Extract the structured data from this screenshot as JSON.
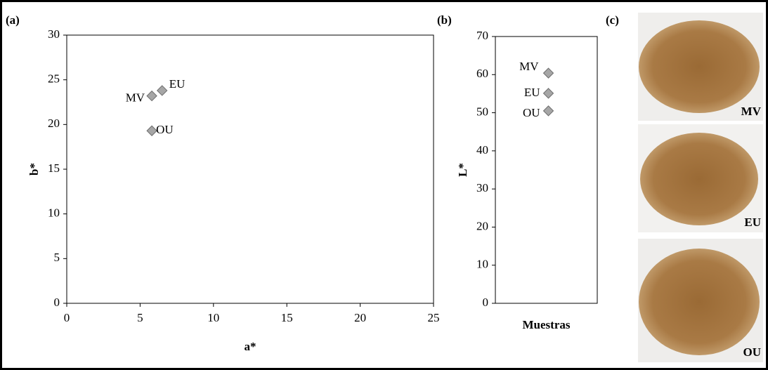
{
  "chart_data": [
    {
      "type": "scatter",
      "panel_label": "(a)",
      "xlabel": "a*",
      "ylabel": "b*",
      "xlim": [
        0,
        25
      ],
      "xticks": [
        0,
        5,
        10,
        15,
        20,
        25
      ],
      "ylim": [
        0,
        30
      ],
      "yticks": [
        0,
        5,
        10,
        15,
        20,
        25,
        30
      ],
      "series": [
        {
          "name": "MV",
          "color": "#a6a6a6",
          "x": [
            5.8
          ],
          "values": [
            23.2
          ]
        },
        {
          "name": "EU",
          "color": "#a6a6a6",
          "x": [
            6.5
          ],
          "values": [
            23.8
          ]
        },
        {
          "name": "OU",
          "color": "#a6a6a6",
          "x": [
            5.8
          ],
          "values": [
            19.3
          ]
        }
      ]
    },
    {
      "type": "strip",
      "panel_label": "(b)",
      "xlabel": "Muestras",
      "ylabel": "L*",
      "ylim": [
        0,
        70
      ],
      "yticks": [
        0,
        10,
        20,
        30,
        40,
        50,
        60,
        70
      ],
      "series": [
        {
          "name": "MV",
          "color": "#a6a6a6",
          "values": [
            60.4
          ]
        },
        {
          "name": "EU",
          "color": "#a6a6a6",
          "values": [
            55.1
          ]
        },
        {
          "name": "OU",
          "color": "#a6a6a6",
          "values": [
            50.5
          ]
        }
      ]
    }
  ],
  "photos": {
    "panel_label": "(c)",
    "captions": [
      "MV",
      "EU",
      "OU"
    ]
  }
}
